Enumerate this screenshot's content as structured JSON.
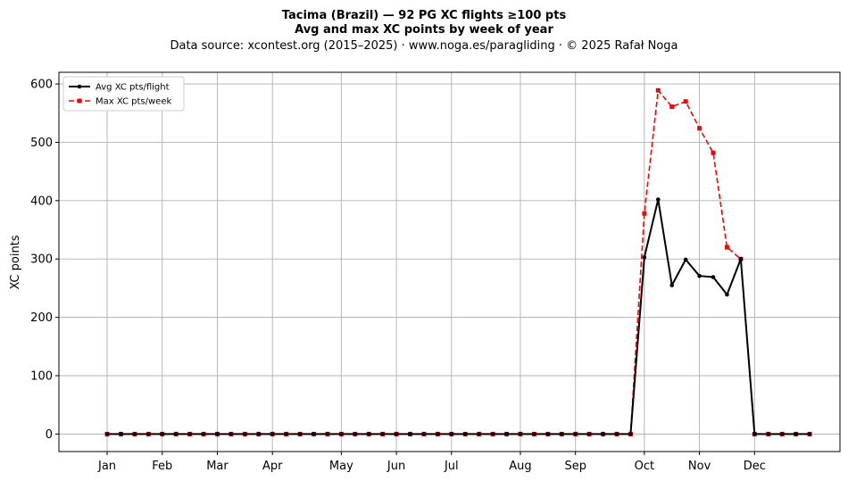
{
  "chart_data": {
    "type": "line",
    "title_line1": "Tacima (Brazil)  —  92 PG XC flights ≥100 pts",
    "title_line2": "Avg and max XC points by week of year",
    "subtitle": "Data source: xcontest.org (2015–2025)  ·  www.noga.es/paragliding  ·  © 2025 Rafał Noga",
    "xlabel": "",
    "ylabel": "XC points",
    "ylim": [
      -30,
      620
    ],
    "yticks": [
      0,
      100,
      200,
      300,
      400,
      500,
      600
    ],
    "xlim": [
      -2.5,
      54.2
    ],
    "grid": true,
    "legend_position": "top-left",
    "month_ticks": [
      {
        "label": "Jan",
        "week": 1
      },
      {
        "label": "Feb",
        "week": 5
      },
      {
        "label": "Mar",
        "week": 9
      },
      {
        "label": "Apr",
        "week": 13
      },
      {
        "label": "May",
        "week": 18
      },
      {
        "label": "Jun",
        "week": 22
      },
      {
        "label": "Jul",
        "week": 26
      },
      {
        "label": "Aug",
        "week": 31
      },
      {
        "label": "Sep",
        "week": 35
      },
      {
        "label": "Oct",
        "week": 40
      },
      {
        "label": "Nov",
        "week": 44
      },
      {
        "label": "Dec",
        "week": 48
      }
    ],
    "x": [
      1,
      2,
      3,
      4,
      5,
      6,
      7,
      8,
      9,
      10,
      11,
      12,
      13,
      14,
      15,
      16,
      17,
      18,
      19,
      20,
      21,
      22,
      23,
      24,
      25,
      26,
      27,
      28,
      29,
      30,
      31,
      32,
      33,
      34,
      35,
      36,
      37,
      38,
      39,
      40,
      41,
      42,
      43,
      44,
      45,
      46,
      47,
      48,
      49,
      50,
      51,
      52
    ],
    "series": [
      {
        "name": "Avg XC pts/flight",
        "color": "#000000",
        "style": "solid",
        "marker": "circle",
        "values": [
          0,
          0,
          0,
          0,
          0,
          0,
          0,
          0,
          0,
          0,
          0,
          0,
          0,
          0,
          0,
          0,
          0,
          0,
          0,
          0,
          0,
          0,
          0,
          0,
          0,
          0,
          0,
          0,
          0,
          0,
          0,
          0,
          0,
          0,
          0,
          0,
          0,
          0,
          0,
          303,
          402,
          255,
          299,
          271,
          269,
          239,
          300,
          0,
          0,
          0,
          0,
          0
        ]
      },
      {
        "name": "Max XC pts/week",
        "color": "#ff0000",
        "style": "dashed",
        "marker": "square",
        "values": [
          0,
          0,
          0,
          0,
          0,
          0,
          0,
          0,
          0,
          0,
          0,
          0,
          0,
          0,
          0,
          0,
          0,
          0,
          0,
          0,
          0,
          0,
          0,
          0,
          0,
          0,
          0,
          0,
          0,
          0,
          0,
          0,
          0,
          0,
          0,
          0,
          0,
          0,
          0,
          378,
          589,
          561,
          570,
          524,
          482,
          320,
          300,
          0,
          0,
          0,
          0,
          0
        ]
      }
    ]
  }
}
